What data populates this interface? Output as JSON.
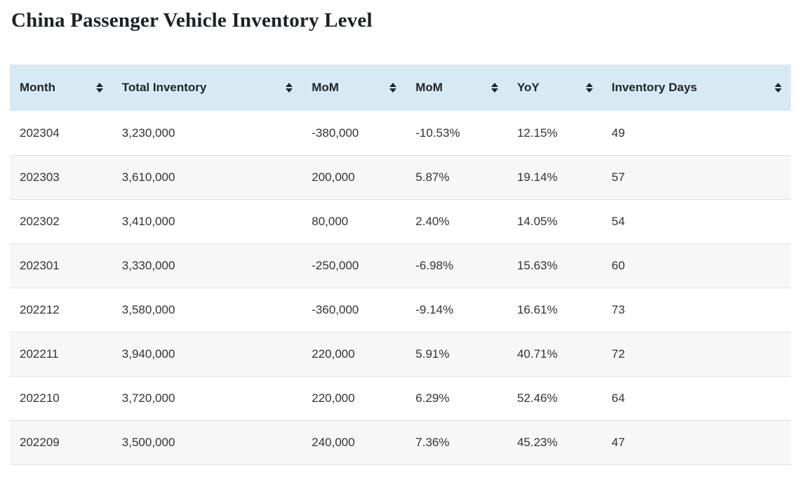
{
  "page": {
    "title": "China Passenger Vehicle Inventory Level"
  },
  "chart_data": {
    "type": "table",
    "title": "China Passenger Vehicle Inventory Level",
    "columns": [
      {
        "key": "month",
        "label": "Month",
        "sortable": true
      },
      {
        "key": "total-inventory",
        "label": "Total Inventory",
        "sortable": true
      },
      {
        "key": "mom-change",
        "label": "MoM",
        "sortable": true
      },
      {
        "key": "mom-percent",
        "label": "MoM",
        "sortable": true
      },
      {
        "key": "yoy-percent",
        "label": "YoY",
        "sortable": true
      },
      {
        "key": "inventory-days",
        "label": "Inventory Days",
        "sortable": true
      }
    ],
    "rows": [
      [
        "202304",
        "3,230,000",
        "-380,000",
        "-10.53%",
        "12.15%",
        "49"
      ],
      [
        "202303",
        "3,610,000",
        "200,000",
        "5.87%",
        "19.14%",
        "57"
      ],
      [
        "202302",
        "3,410,000",
        "80,000",
        "2.40%",
        "14.05%",
        "54"
      ],
      [
        "202301",
        "3,330,000",
        "-250,000",
        "-6.98%",
        "15.63%",
        "60"
      ],
      [
        "202212",
        "3,580,000",
        "-360,000",
        "-9.14%",
        "16.61%",
        "73"
      ],
      [
        "202211",
        "3,940,000",
        "220,000",
        "5.91%",
        "40.71%",
        "72"
      ],
      [
        "202210",
        "3,720,000",
        "220,000",
        "6.29%",
        "52.46%",
        "64"
      ],
      [
        "202209",
        "3,500,000",
        "240,000",
        "7.36%",
        "45.23%",
        "47"
      ]
    ]
  },
  "icons": {
    "sort": "up-down-sort-arrows"
  },
  "colors": {
    "header_bg": "#d7eaf4",
    "row_alt_bg": "#f7f7f7",
    "row_border": "#dee2e6",
    "header_text": "#212529",
    "cell_text": "#333333",
    "sort_icon": "#1b2430"
  }
}
